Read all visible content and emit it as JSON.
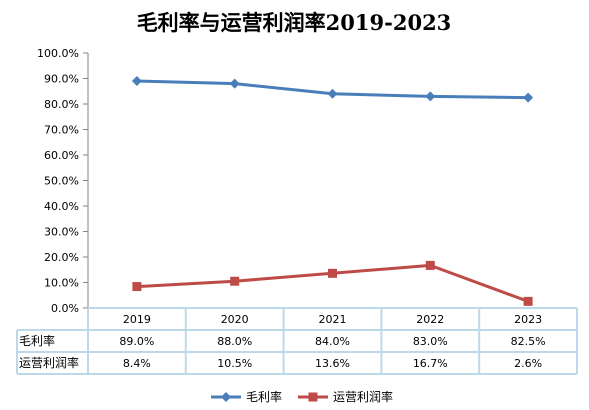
{
  "chart_data": {
    "type": "line",
    "title": "毛利率与运营利润率2019-2023",
    "categories": [
      "2019",
      "2020",
      "2021",
      "2022",
      "2023"
    ],
    "y_ticks": [
      "100.0%",
      "90.0%",
      "80.0%",
      "70.0%",
      "60.0%",
      "50.0%",
      "40.0%",
      "30.0%",
      "20.0%",
      "10.0%",
      "0.0%"
    ],
    "ylim": [
      0,
      100
    ],
    "y_unit": "%",
    "grid": false,
    "legend_position": "bottom",
    "series": [
      {
        "name": "毛利率",
        "values": [
          89.0,
          88.0,
          84.0,
          83.0,
          82.5
        ],
        "labels": [
          "89.0%",
          "88.0%",
          "84.0%",
          "83.0%",
          "82.5%"
        ],
        "color": "#4a7ebb",
        "marker": "diamond"
      },
      {
        "name": "运营利润率",
        "values": [
          8.4,
          10.5,
          13.6,
          16.7,
          2.6
        ],
        "labels": [
          "8.4%",
          "10.5%",
          "13.6%",
          "16.7%",
          "2.6%"
        ],
        "color": "#be4b48",
        "marker": "square"
      }
    ],
    "data_table": true
  }
}
